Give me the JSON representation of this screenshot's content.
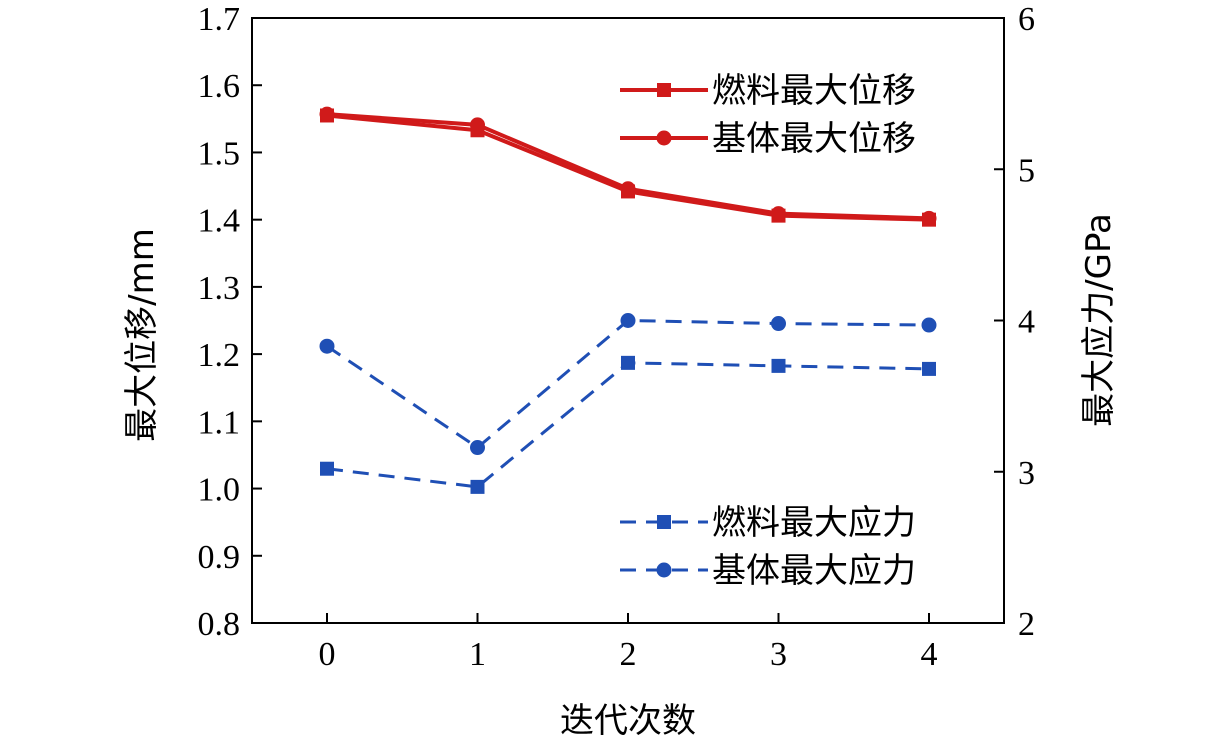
{
  "chart_data": {
    "type": "line",
    "xlabel": "迭代次数",
    "ylabel_left": "最大位移/mm",
    "ylabel_right": "最大应力/GPa",
    "x": [
      0,
      1,
      2,
      3,
      4
    ],
    "xticks": [
      "0",
      "1",
      "2",
      "3",
      "4"
    ],
    "ylim_left": [
      0.8,
      1.7
    ],
    "yticks_left": [
      "0.8",
      "0.9",
      "1.0",
      "1.1",
      "1.2",
      "1.3",
      "1.4",
      "1.5",
      "1.6",
      "1.7"
    ],
    "ylim_right": [
      2,
      6
    ],
    "yticks_right": [
      "2",
      "3",
      "4",
      "5",
      "6"
    ],
    "grid": false,
    "series": [
      {
        "name": "燃料最大位移",
        "axis": "left",
        "values": [
          1.555,
          1.533,
          1.442,
          1.406,
          1.4
        ],
        "color": "#d01a1a",
        "marker": "square",
        "dash": "solid"
      },
      {
        "name": "基体最大位移",
        "axis": "left",
        "values": [
          1.557,
          1.541,
          1.446,
          1.409,
          1.402
        ],
        "color": "#d01a1a",
        "marker": "circle",
        "dash": "solid"
      },
      {
        "name": "燃料最大应力",
        "axis": "right",
        "values": [
          3.02,
          2.9,
          3.72,
          3.7,
          3.68
        ],
        "color": "#1f4fb5",
        "marker": "square",
        "dash": "dashed"
      },
      {
        "name": "基体最大应力",
        "axis": "right",
        "values": [
          3.83,
          3.16,
          4.0,
          3.98,
          3.97
        ],
        "color": "#1f4fb5",
        "marker": "circle",
        "dash": "dashed"
      }
    ],
    "legend": [
      {
        "placement": "top-right",
        "items": [
          "燃料最大位移",
          "基体最大位移"
        ]
      },
      {
        "placement": "bottom-right",
        "items": [
          "燃料最大应力",
          "基体最大应力"
        ]
      }
    ]
  }
}
